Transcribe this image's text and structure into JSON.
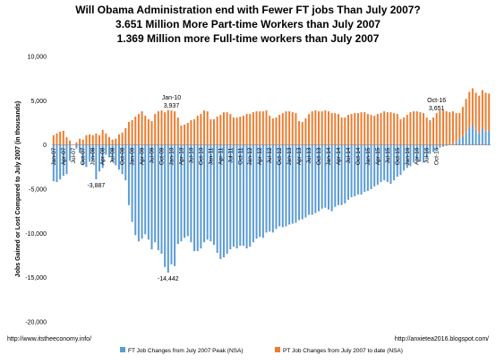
{
  "chart_data": {
    "type": "bar",
    "stacked": true,
    "title_lines": [
      "Will Obama Administration end with Fewer FT jobs Than July 2007?",
      "3.651 Million More Part-time Workers than July 2007",
      "1.369 Million more Full-time workers than July 2007"
    ],
    "ylabel": "Jobs Gained or Lost Compared to July 2007 (in thousands)",
    "ylim": [
      -20000,
      10000
    ],
    "yticks": [
      10000,
      5000,
      0,
      -5000,
      -10000,
      -15000,
      -20000
    ],
    "ytick_labels": [
      "10,000",
      "5,000",
      "0",
      "-5,000",
      "-10,000",
      "-15,000",
      "-20,000"
    ],
    "grid": false,
    "legend_position": "bottom",
    "x_tick_labels": [
      "Jan-07",
      "Apr-07",
      "Jul-07",
      "Oct-07",
      "Jan-08",
      "Apr-08",
      "Jul-08",
      "Oct-08",
      "Jan-09",
      "Apr-09",
      "Jul-09",
      "Oct-09",
      "Jan-10",
      "Apr-10",
      "Jul-10",
      "Oct-10",
      "Jan-11",
      "Apr-11",
      "Jul-11",
      "Oct-11",
      "Jan-12",
      "Apr-12",
      "Jul-12",
      "Oct-12",
      "Jan-13",
      "Apr-13",
      "Jul-13",
      "Oct-13",
      "Jan-14",
      "Apr-14",
      "Jul-14",
      "Oct-14",
      "Jan-15",
      "Apr-15",
      "Jul-15",
      "Oct-15",
      "Jan-16",
      "Apr-16",
      "Jul-16",
      "Oct-16"
    ],
    "series": [
      {
        "name": "FT Job Changes from July 2007 Peak (NSA)",
        "color": "#5b9bd5",
        "values": [
          -4100,
          -4200,
          -3900,
          -3500,
          -3300,
          -1800,
          0,
          -400,
          -900,
          -2300,
          -2500,
          -1900,
          -1700,
          -3887,
          -3000,
          -2600,
          -1100,
          -1400,
          -1900,
          -2300,
          -2800,
          -3300,
          -4000,
          -6800,
          -8700,
          -10200,
          -10900,
          -10600,
          -10100,
          -10700,
          -11800,
          -11000,
          -11900,
          -12300,
          -13800,
          -14442,
          -13500,
          -13700,
          -11200,
          -10900,
          -10500,
          -10300,
          -11000,
          -12000,
          -12000,
          -11700,
          -11000,
          -10700,
          -10900,
          -11300,
          -12200,
          -12900,
          -12700,
          -12300,
          -11800,
          -11500,
          -11700,
          -11400,
          -11400,
          -11700,
          -11500,
          -11000,
          -10600,
          -10400,
          -10500,
          -9900,
          -9800,
          -9900,
          -9500,
          -9200,
          -9300,
          -9200,
          -9000,
          -8900,
          -8800,
          -8500,
          -8400,
          -8200,
          -7900,
          -7900,
          -7700,
          -7500,
          -7200,
          -7100,
          -7300,
          -7500,
          -7000,
          -6800,
          -6800,
          -6600,
          -6200,
          -5900,
          -5800,
          -5600,
          -5600,
          -5300,
          -5200,
          -5000,
          -4700,
          -4500,
          -4200,
          -4000,
          -4200,
          -4400,
          -4000,
          -3600,
          -3400,
          -2900,
          -2600,
          -2400,
          -2000,
          -1700,
          -1900,
          -2000,
          -1500,
          -1000,
          -800,
          -500,
          -300,
          -200,
          -100,
          0,
          100,
          300,
          700,
          1000,
          1400,
          1900,
          2300,
          1700,
          1369,
          1900,
          1500,
          1600
        ]
      },
      {
        "name": "PT Job Changes from July 2007 to date (NSA)",
        "color": "#ed7d31",
        "values": [
          1100,
          1300,
          1500,
          1600,
          900,
          500,
          0,
          300,
          700,
          600,
          1100,
          1200,
          1100,
          1300,
          1100,
          1700,
          1300,
          900,
          600,
          700,
          1200,
          1400,
          1900,
          2600,
          2800,
          3200,
          3500,
          3800,
          3300,
          2900,
          2700,
          3500,
          3800,
          3900,
          3700,
          3937,
          3900,
          3800,
          3100,
          2200,
          2300,
          2500,
          2800,
          2900,
          3300,
          3500,
          3900,
          3800,
          2900,
          2900,
          3200,
          3400,
          3700,
          3700,
          3500,
          3100,
          3100,
          3200,
          3300,
          3500,
          3500,
          3700,
          3800,
          3800,
          3800,
          3900,
          3300,
          3000,
          3100,
          3400,
          3600,
          3800,
          3800,
          3700,
          3600,
          2700,
          2600,
          3000,
          3500,
          3800,
          3900,
          3800,
          3800,
          3900,
          3800,
          3600,
          3600,
          3500,
          3100,
          3100,
          3400,
          3500,
          3600,
          3600,
          3700,
          3700,
          3500,
          3400,
          3300,
          3500,
          3600,
          3800,
          3700,
          3700,
          3600,
          3500,
          2900,
          3100,
          3400,
          3700,
          3800,
          3800,
          3700,
          3600,
          3100,
          2800,
          3100,
          3600,
          3900,
          3900,
          3800,
          3700,
          3700,
          3300,
          2900,
          3300,
          3800,
          4100,
          4100,
          4200,
          4200,
          4300,
          4400,
          4200,
          3700,
          3300,
          3800,
          4200,
          4600,
          4700,
          4600,
          4800,
          3651,
          4300,
          4900,
          5300
        ]
      }
    ],
    "annotations": [
      {
        "text": "-3,887",
        "bar_index": 13,
        "series": 0,
        "placement": "below"
      },
      {
        "text": "Jan-10",
        "bar_index": 36,
        "series": 1,
        "placement": "above",
        "line": 2
      },
      {
        "text": "3,937",
        "bar_index": 36,
        "series": 1,
        "placement": "above",
        "line": 1
      },
      {
        "text": "-14,442",
        "bar_index": 35,
        "series": 0,
        "placement": "below"
      },
      {
        "text": "Oct-16",
        "bar_index": 117,
        "series": 1,
        "placement": "above",
        "line": 2
      },
      {
        "text": "3,651",
        "bar_index": 117,
        "series": 1,
        "placement": "above",
        "line": 1
      }
    ],
    "source_left": "http://www.itstheeconomy.info/",
    "source_right": "http://anxietea2016.blogspot.com/"
  }
}
